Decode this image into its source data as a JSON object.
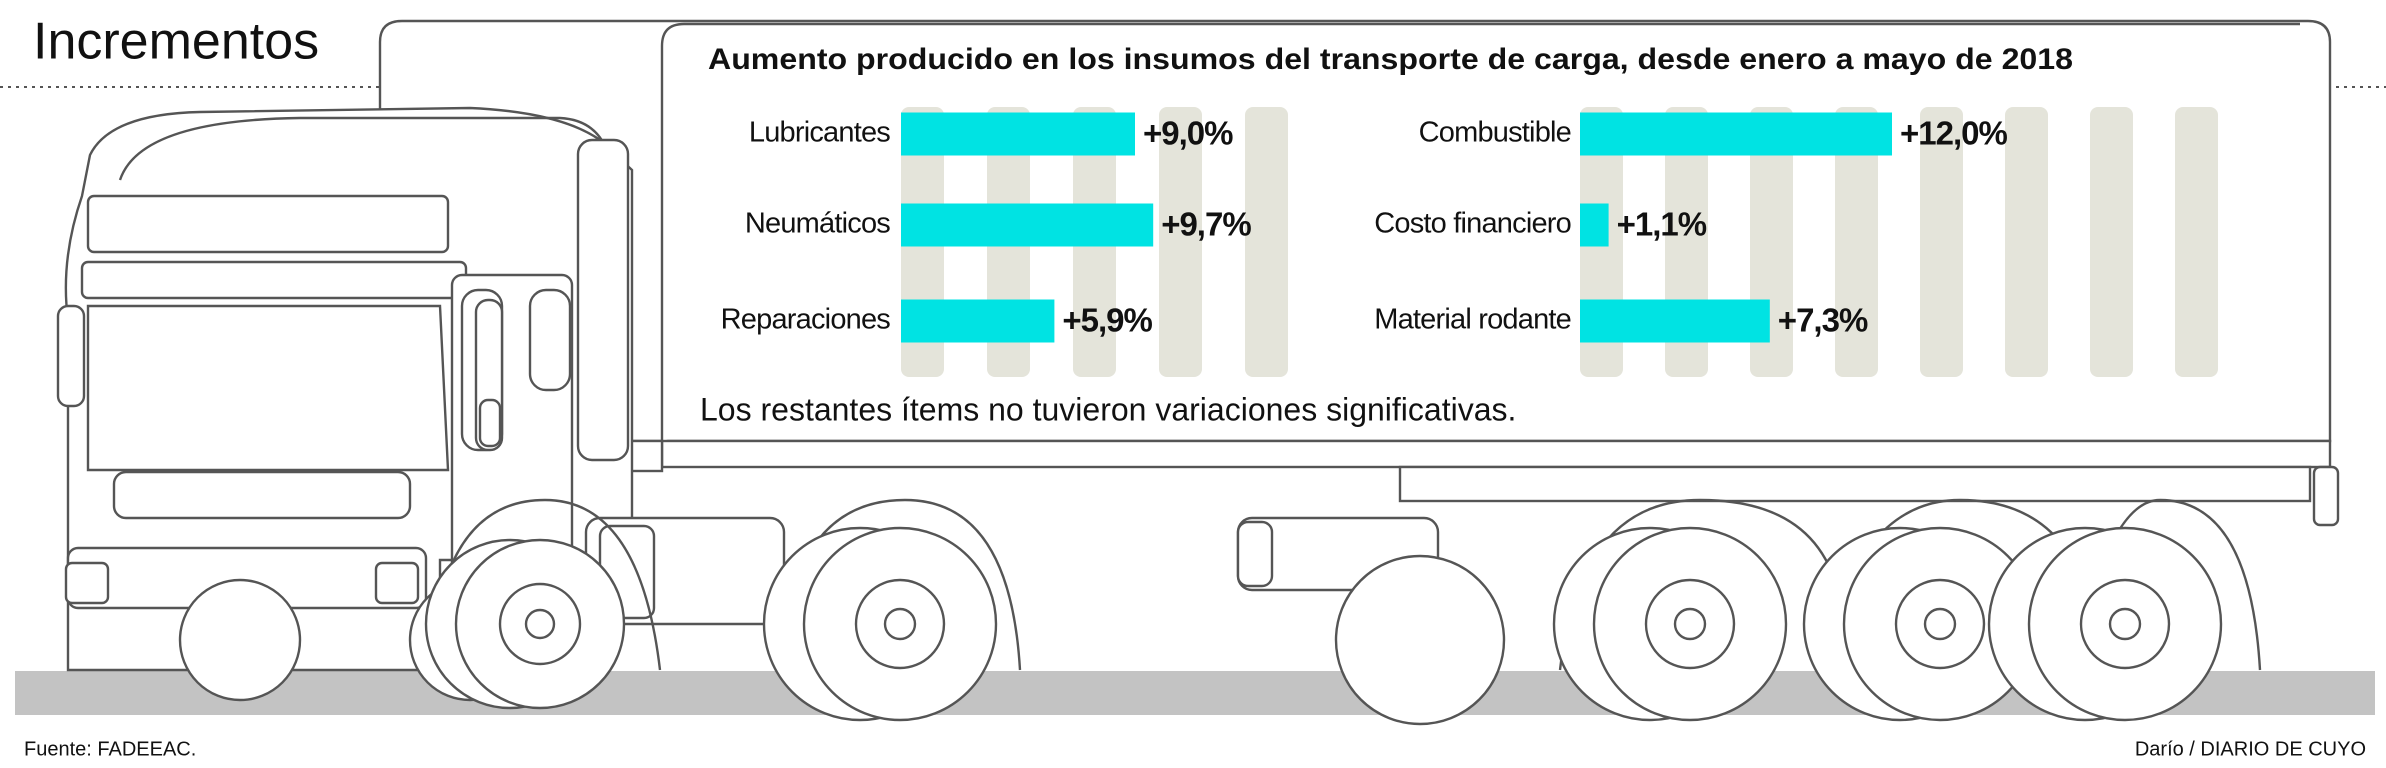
{
  "headline": "Incrementos",
  "subtitle": "Aumento producido en los insumos del transporte de carga, desde enero a mayo de 2018",
  "note": "Los restantes ítems no tuvieron variaciones significativas.",
  "source": "Fuente: FADEEAC.",
  "credit": "Darío / DIARIO DE CUYO",
  "chart_data": [
    {
      "type": "bar",
      "orientation": "horizontal",
      "color": "#00e3e3",
      "categories": [
        "Lubricantes",
        "Neumáticos",
        "Reparaciones"
      ],
      "values": [
        9.0,
        9.7,
        5.9
      ],
      "value_labels": [
        "+9,0%",
        "+9,7%",
        "+5,9%"
      ]
    },
    {
      "type": "bar",
      "orientation": "horizontal",
      "color": "#00e3e3",
      "categories": [
        "Combustible",
        "Costo financiero",
        "Material rodante"
      ],
      "values": [
        12.0,
        1.1,
        7.3
      ],
      "value_labels": [
        "+12,0%",
        "+1,1%",
        "+7,3%"
      ]
    }
  ]
}
